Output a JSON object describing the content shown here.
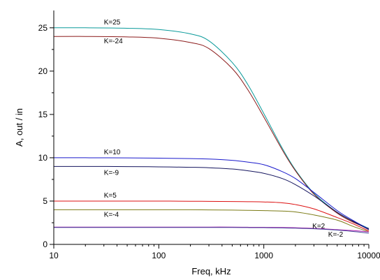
{
  "chart_data": {
    "type": "line",
    "title": "",
    "xlabel": "Freq, kHz",
    "ylabel": "A, out / in",
    "xscale": "log",
    "xlim": [
      10,
      10000
    ],
    "ylim": [
      0,
      27
    ],
    "grid": false,
    "legend": "inline labels",
    "x_ticks": [
      10,
      100,
      1000,
      10000
    ],
    "x_tick_labels": [
      "10",
      "100",
      "1000",
      "10000"
    ],
    "y_ticks": [
      0,
      5,
      10,
      15,
      20,
      25
    ],
    "y_tick_labels": [
      "0",
      "5",
      "10",
      "15",
      "20",
      "25"
    ],
    "x": [
      10,
      20,
      50,
      100,
      200,
      300,
      500,
      700,
      1000,
      1500,
      2000,
      3000,
      5000,
      7000,
      10000
    ],
    "series": [
      {
        "name": "K=25",
        "color": "#0a9a9a",
        "label_at": [
          30,
          25.4
        ],
        "values": [
          25.0,
          25.0,
          24.95,
          24.8,
          24.3,
          23.5,
          21.0,
          18.5,
          15.1,
          11.1,
          8.6,
          5.9,
          3.7,
          2.7,
          1.85
        ]
      },
      {
        "name": "K=-24",
        "color": "#8b1a1a",
        "label_at": [
          30,
          23.2
        ],
        "values": [
          24.0,
          24.0,
          23.95,
          23.8,
          23.3,
          22.6,
          20.3,
          17.9,
          14.7,
          10.9,
          8.5,
          5.8,
          3.6,
          2.6,
          1.8
        ]
      },
      {
        "name": "K=10",
        "color": "#1a1acc",
        "label_at": [
          30,
          10.4
        ],
        "values": [
          10.0,
          10.0,
          9.98,
          9.95,
          9.9,
          9.85,
          9.7,
          9.5,
          9.2,
          8.4,
          7.6,
          6.0,
          3.9,
          2.8,
          1.75
        ]
      },
      {
        "name": "K=-9",
        "color": "#14145e",
        "label_at": [
          30,
          8.0
        ],
        "values": [
          9.0,
          9.0,
          8.98,
          8.95,
          8.9,
          8.85,
          8.7,
          8.5,
          8.2,
          7.6,
          6.9,
          5.6,
          3.7,
          2.7,
          1.7
        ]
      },
      {
        "name": "K=5",
        "color": "#dd1111",
        "label_at": [
          30,
          5.4
        ],
        "values": [
          5.0,
          5.0,
          5.0,
          5.0,
          4.98,
          4.97,
          4.95,
          4.93,
          4.9,
          4.8,
          4.6,
          4.1,
          3.1,
          2.4,
          1.55
        ]
      },
      {
        "name": "K=-4",
        "color": "#7a7a14",
        "label_at": [
          30,
          3.2
        ],
        "values": [
          4.0,
          4.0,
          4.0,
          4.0,
          4.0,
          3.98,
          3.96,
          3.93,
          3.9,
          3.85,
          3.75,
          3.4,
          2.8,
          2.1,
          1.45
        ]
      },
      {
        "name": "K=2",
        "color": "#b020b0",
        "label_at": [
          2900,
          1.85
        ],
        "values": [
          2.0,
          2.0,
          2.0,
          2.0,
          2.0,
          2.0,
          2.0,
          1.98,
          1.97,
          1.95,
          1.92,
          1.85,
          1.7,
          1.6,
          1.45
        ]
      },
      {
        "name": "K=-2",
        "color": "#444499",
        "label_at": [
          4100,
          0.9
        ],
        "values": [
          1.95,
          1.95,
          1.95,
          1.95,
          1.95,
          1.95,
          1.95,
          1.94,
          1.93,
          1.9,
          1.87,
          1.8,
          1.65,
          1.5,
          1.3
        ]
      }
    ]
  }
}
